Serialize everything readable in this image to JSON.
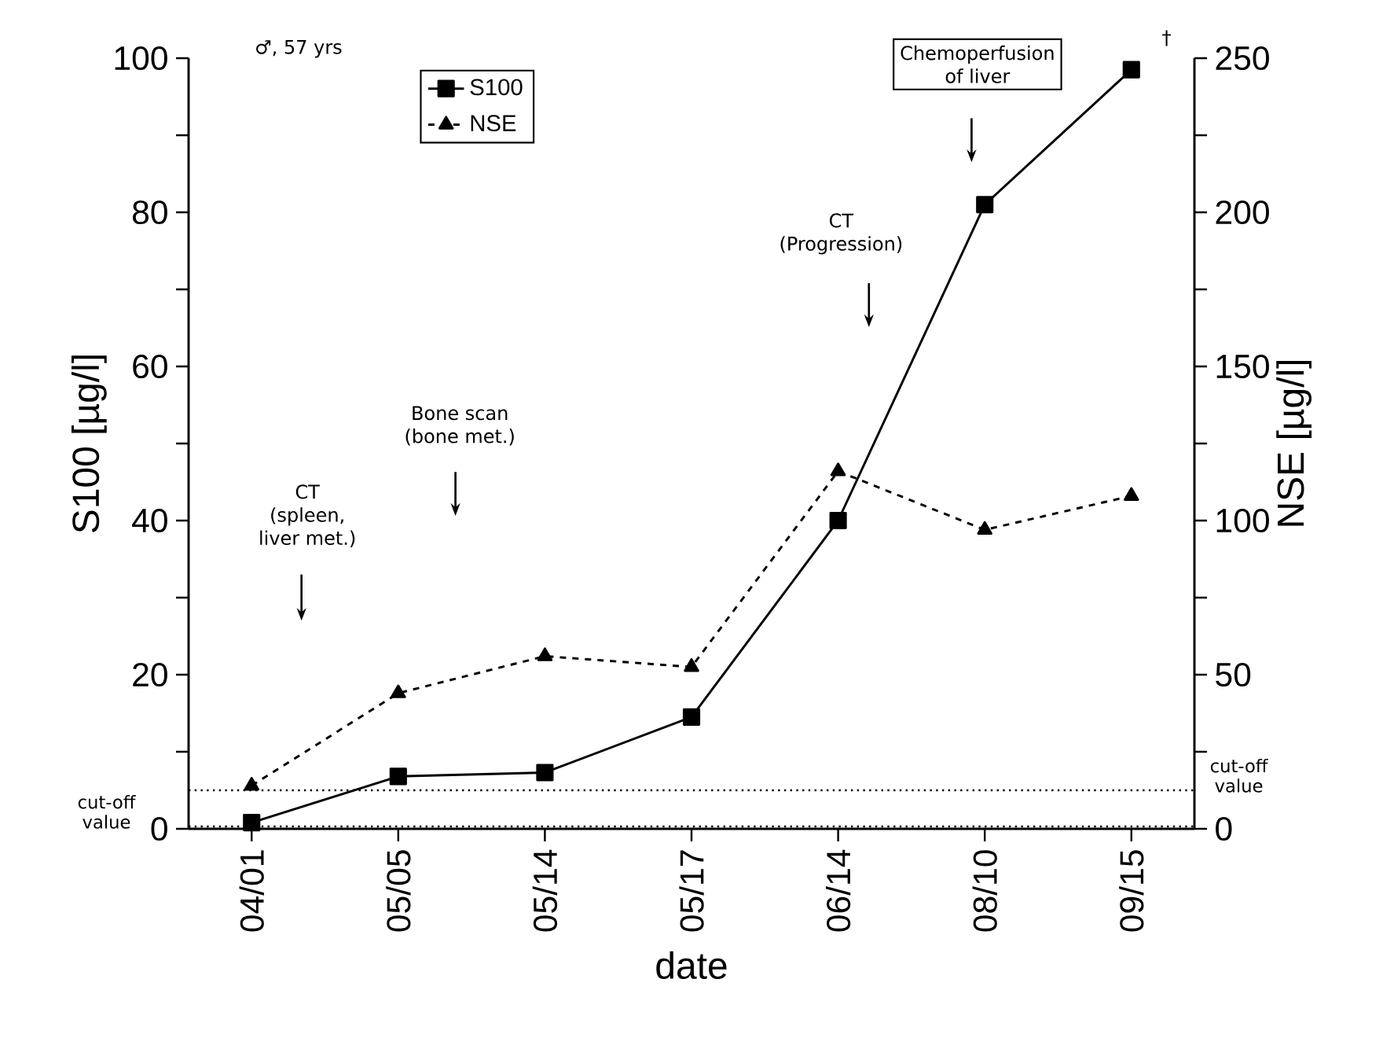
{
  "chart_data": {
    "type": "line",
    "xlabel": "date",
    "ylabel": "S100 [µg/l]",
    "y2label": "NSE [µg/l]",
    "categories": [
      "04/01",
      "05/05",
      "05/14",
      "05/17",
      "06/14",
      "08/10",
      "09/15"
    ],
    "series": [
      {
        "name": "S100",
        "color": "#000000",
        "marker": "square",
        "line_style": "solid",
        "values": [
          0.8,
          6.8,
          7.3,
          14.5,
          40,
          81,
          98.5
        ]
      },
      {
        "name": "NSE",
        "color": "#000000",
        "marker": "triangle",
        "line_style": "dashed",
        "axis": "y2",
        "values": [
          14,
          44,
          56,
          52.5,
          116,
          97,
          108
        ]
      }
    ],
    "ylim": [
      0,
      100
    ],
    "yticks": [
      0,
      {
        "value": 10,
        "label": null
      },
      20,
      {
        "value": 30,
        "label": null
      },
      40,
      {
        "value": 50,
        "label": null
      },
      60,
      {
        "value": 70,
        "label": null
      },
      80,
      {
        "value": 90,
        "label": null
      },
      100
    ],
    "y2lim": [
      0,
      250
    ],
    "y2ticks": [
      0,
      {
        "value": 25,
        "label": null
      },
      50,
      {
        "value": 75,
        "label": null
      },
      100,
      {
        "value": 125,
        "label": null
      },
      150,
      {
        "value": 175,
        "label": null
      },
      200,
      {
        "value": 225,
        "label": null
      },
      250
    ],
    "ref_lines": [
      {
        "axis": "y",
        "value": 0.3,
        "label": "cut-off value",
        "line_style": "dotted",
        "color": "#000000"
      },
      {
        "axis": "y2",
        "value": 12.5,
        "label": "cut-off value",
        "line_style": "dotted",
        "color": "#000000"
      }
    ],
    "annotations": [
      "♂, 57 yrs",
      "CT",
      "(spleen,",
      "liver met.)",
      "Bone scan",
      "(bone met.)",
      "CT",
      "(Progression)",
      "Chemoperfusion",
      "of liver",
      "†"
    ],
    "legend": "top left",
    "grid": false
  }
}
